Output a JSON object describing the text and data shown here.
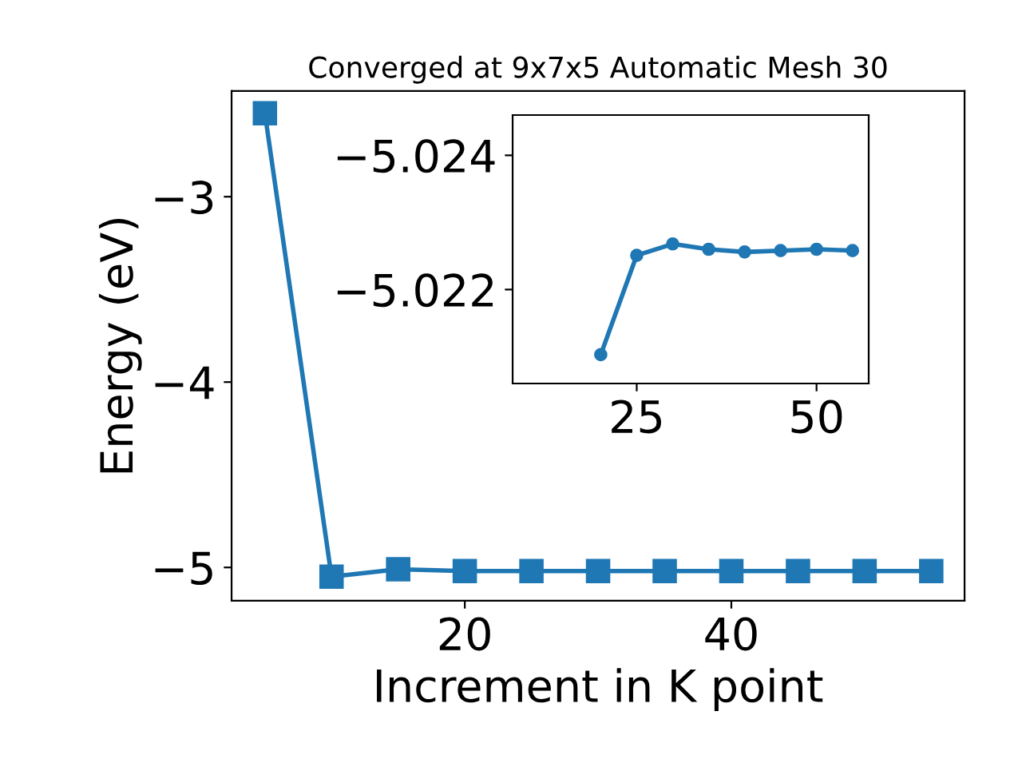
{
  "chart_data": [
    {
      "type": "line",
      "title": "Converged at 9x7x5 Automatic Mesh 30",
      "xlabel": "Increment in K point",
      "ylabel": "Energy (eV)",
      "marker": "square",
      "line_style": "solid",
      "grid": false,
      "legend": false,
      "series": [
        {
          "color": "#1f77b4",
          "x": [
            5,
            10,
            15,
            20,
            25,
            30,
            35,
            40,
            45,
            50,
            55
          ],
          "values": [
            -2.55,
            -5.05,
            -5.01,
            -5.02,
            -5.02,
            -5.02,
            -5.02,
            -5.02,
            -5.02,
            -5.02,
            -5.02
          ]
        }
      ],
      "xlim": [
        2.5,
        57.5
      ],
      "xticks": [
        20,
        40
      ],
      "ylim": [
        -5.18,
        -2.43
      ],
      "yticks": [
        -5,
        -4,
        -3
      ]
    },
    {
      "type": "line",
      "marker": "circle",
      "line_style": "solid",
      "grid": false,
      "legend": false,
      "series": [
        {
          "color": "#1f77b4",
          "x": [
            20,
            25,
            30,
            35,
            40,
            45,
            50,
            55
          ],
          "values": [
            -5.02103,
            -5.02251,
            -5.02268,
            -5.0226,
            -5.02256,
            -5.02258,
            -5.0226,
            -5.02258
          ]
        }
      ],
      "xlim": [
        7.75,
        57.25
      ],
      "xticks": [
        25,
        50
      ],
      "ylim": [
        -5.0206,
        -5.0246
      ],
      "yticks": [
        -5.024,
        -5.022
      ]
    }
  ]
}
